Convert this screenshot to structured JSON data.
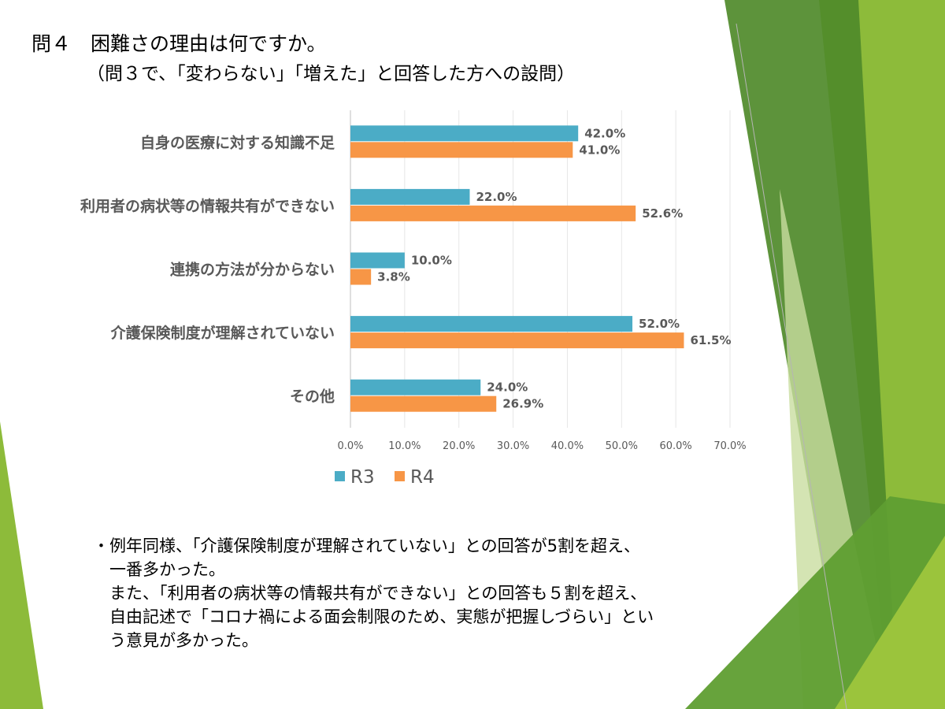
{
  "title": {
    "line1": "問４　困難さの理由は何ですか。",
    "line2": "（問３で、「変わらない」「増えた」と回答した方への設問）"
  },
  "colors": {
    "r3": "#4bacc6",
    "r4": "#f79646",
    "green_dark": "#4f8a2a",
    "green_light": "#9bc43c"
  },
  "chart_data": {
    "type": "bar",
    "orientation": "horizontal",
    "categories": [
      "自身の医療に対する知識不足",
      "利用者の病状等の情報共有ができない",
      "連携の方法が分からない",
      "介護保険制度が理解されていない",
      "その他"
    ],
    "series": [
      {
        "name": "R3",
        "values": [
          42.0,
          22.0,
          10.0,
          52.0,
          24.0
        ],
        "labels": [
          "42.0%",
          "22.0%",
          "10.0%",
          "52.0%",
          "24.0%"
        ]
      },
      {
        "name": "R4",
        "values": [
          41.0,
          52.6,
          3.8,
          61.5,
          26.9
        ],
        "labels": [
          "41.0%",
          "52.6%",
          "3.8%",
          "61.5%",
          "26.9%"
        ]
      }
    ],
    "xlim": [
      0,
      70
    ],
    "ticks": [
      "0.0%",
      "10.0%",
      "20.0%",
      "30.0%",
      "40.0%",
      "50.0%",
      "60.0%",
      "70.0%"
    ],
    "grid": true,
    "legend": "bottom-left"
  },
  "summary": {
    "line1": "・例年同様、「介護保険制度が理解されていない」との回答が5割を超え、",
    "line2": "　一番多かった。",
    "line3": "　また、「利用者の病状等の情報共有ができない」との回答も５割を超え、",
    "line4": "　自由記述で「コロナ禍による面会制限のため、実態が把握しづらい」とい",
    "line5": "　う意見が多かった。"
  }
}
